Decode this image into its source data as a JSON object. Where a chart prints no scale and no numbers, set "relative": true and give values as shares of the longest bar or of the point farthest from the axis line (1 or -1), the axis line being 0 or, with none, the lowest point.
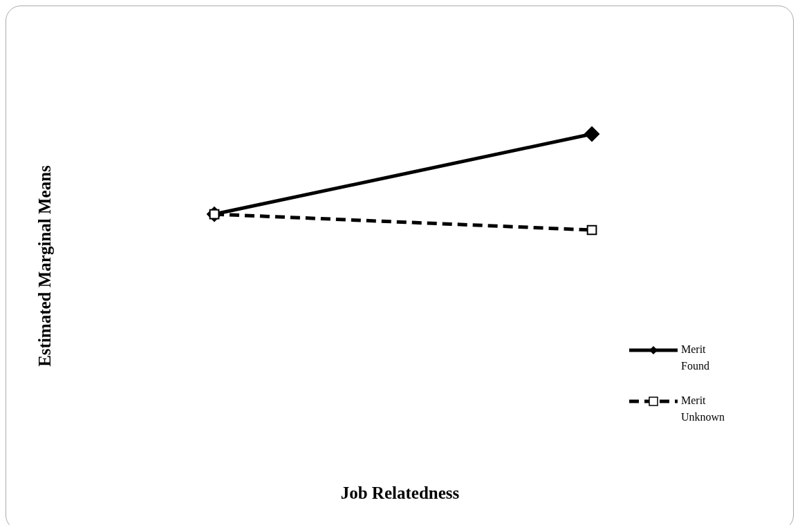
{
  "chart_data": {
    "type": "line",
    "relative": true,
    "annotations": [
      "Job Relatedness"
    ],
    "ylabel": "Estimated Marginal Means",
    "categories": [
      null,
      null
    ],
    "legend": "right",
    "series": [
      {
        "name": "Merit Found",
        "color": "#000000",
        "values": [
          0.165,
          1
        ],
        "marker": "diamond",
        "line_style": "solid"
      },
      {
        "name": "Merit Unknown",
        "color": "#000000",
        "values": [
          0.165,
          0
        ],
        "marker": "square",
        "line_style": "dashed"
      }
    ]
  }
}
